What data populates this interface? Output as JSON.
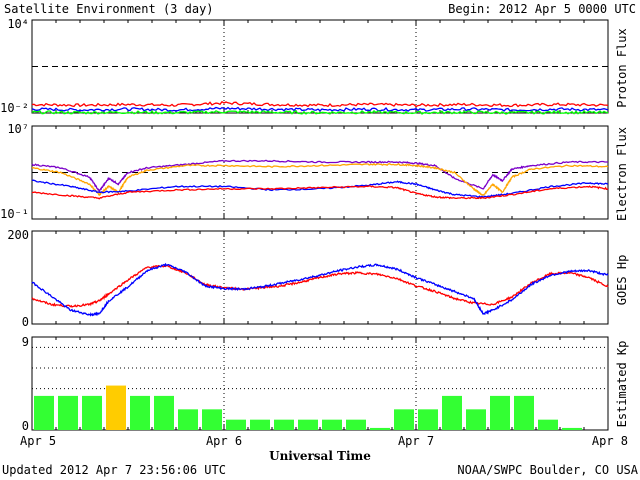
{
  "header": {
    "title": "Satellite Environment (3 day)",
    "begin": "Begin:  2012 Apr 5 0000 UTC"
  },
  "footer": {
    "updated": "Updated 2012 Apr  7 23:56:06 UTC",
    "credit": "NOAA/SWPC Boulder, CO USA"
  },
  "x_axis": {
    "title": "Universal Time",
    "ticks": [
      "Apr 5",
      "Apr 6",
      "Apr 7",
      "Apr 8"
    ]
  },
  "colors": {
    "red": "#ff0000",
    "blue": "#0000ff",
    "green": "#00ff00",
    "purple": "#7a00c8",
    "orange": "#ffa500",
    "kp_green": "#33ff33",
    "kp_yellow": "#ffcc00"
  },
  "chart_data": [
    {
      "type": "line",
      "ylabel": "Proton Flux",
      "y_ticks": [
        "10⁴",
        "10⁻²"
      ],
      "ylim_log10": [
        -2,
        4
      ],
      "threshold_log10": 1,
      "series": [
        {
          "color": "red",
          "x": [
            0,
            0.25,
            0.5,
            0.75,
            1.0,
            1.25,
            1.5,
            1.75,
            2.0,
            2.25,
            2.5,
            2.75,
            3.0
          ],
          "y": [
            -1.45,
            -1.5,
            -1.45,
            -1.5,
            -1.35,
            -1.45,
            -1.5,
            -1.45,
            -1.5,
            -1.45,
            -1.5,
            -1.45,
            -1.5
          ]
        },
        {
          "color": "blue",
          "x": [
            0,
            0.25,
            0.5,
            0.75,
            1.0,
            1.25,
            1.5,
            1.75,
            2.0,
            2.25,
            2.5,
            2.75,
            3.0
          ],
          "y": [
            -1.75,
            -1.8,
            -1.75,
            -1.8,
            -1.7,
            -1.75,
            -1.8,
            -1.75,
            -1.8,
            -1.75,
            -1.8,
            -1.75,
            -1.8
          ]
        },
        {
          "color": "green",
          "x": [
            0,
            0.25,
            0.5,
            0.75,
            1.0,
            1.25,
            1.5,
            1.75,
            2.0,
            2.25,
            2.5,
            2.75,
            3.0
          ],
          "y": [
            -1.95,
            -1.98,
            -1.95,
            -1.98,
            -1.92,
            -1.95,
            -1.98,
            -1.95,
            -1.98,
            -1.95,
            -1.98,
            -1.95,
            -1.98
          ]
        }
      ]
    },
    {
      "type": "line",
      "ylabel": "Electron Flux",
      "y_ticks": [
        "10⁷",
        "10⁻¹"
      ],
      "ylim_log10": [
        -1,
        7
      ],
      "threshold_log10": 3,
      "series": [
        {
          "color": "purple",
          "x": [
            0,
            0.15,
            0.3,
            0.35,
            0.4,
            0.45,
            0.5,
            0.6,
            0.8,
            1.0,
            1.25,
            1.5,
            1.75,
            1.9,
            2.0,
            2.1,
            2.2,
            2.35,
            2.4,
            2.45,
            2.5,
            2.6,
            2.8,
            3.0
          ],
          "y": [
            3.7,
            3.4,
            2.6,
            1.4,
            2.5,
            2.0,
            3.0,
            3.4,
            3.7,
            4.0,
            4.0,
            3.9,
            3.9,
            3.9,
            3.8,
            3.6,
            2.5,
            1.6,
            2.8,
            2.3,
            3.3,
            3.6,
            3.9,
            3.9
          ]
        },
        {
          "color": "orange",
          "x": [
            0,
            0.15,
            0.3,
            0.35,
            0.4,
            0.45,
            0.5,
            0.6,
            0.8,
            1.0,
            1.25,
            1.5,
            1.75,
            1.9,
            2.0,
            2.1,
            2.2,
            2.3,
            2.35,
            2.4,
            2.45,
            2.5,
            2.6,
            2.8,
            3.0
          ],
          "y": [
            3.4,
            3.0,
            2.0,
            1.1,
            1.8,
            1.3,
            2.6,
            3.2,
            3.6,
            3.6,
            3.5,
            3.6,
            3.7,
            3.7,
            3.6,
            3.4,
            3.0,
            1.6,
            1.0,
            2.0,
            1.3,
            2.6,
            3.3,
            3.6,
            3.5
          ]
        },
        {
          "color": "blue",
          "x": [
            0,
            0.2,
            0.35,
            0.5,
            0.75,
            1.0,
            1.25,
            1.5,
            1.75,
            1.9,
            2.0,
            2.1,
            2.2,
            2.35,
            2.5,
            2.7,
            2.9,
            3.0
          ],
          "y": [
            2.3,
            1.8,
            1.3,
            1.4,
            1.8,
            1.8,
            1.5,
            1.6,
            1.9,
            2.2,
            2.0,
            1.5,
            1.1,
            0.9,
            1.2,
            1.8,
            2.1,
            2.0
          ]
        },
        {
          "color": "red",
          "x": [
            0,
            0.2,
            0.35,
            0.5,
            0.75,
            1.0,
            1.25,
            1.5,
            1.75,
            1.9,
            2.0,
            2.1,
            2.2,
            2.35,
            2.5,
            2.7,
            2.9,
            3.0
          ],
          "y": [
            1.3,
            1.0,
            0.8,
            1.3,
            1.5,
            1.6,
            1.6,
            1.7,
            1.8,
            1.7,
            1.2,
            0.9,
            0.8,
            0.8,
            1.1,
            1.6,
            1.8,
            1.6
          ]
        }
      ]
    },
    {
      "type": "line",
      "ylabel": "GOES Hp",
      "y_ticks": [
        "200",
        "0"
      ],
      "ylim": [
        0,
        200
      ],
      "series": [
        {
          "color": "red",
          "x": [
            0,
            0.1,
            0.2,
            0.3,
            0.35,
            0.4,
            0.5,
            0.6,
            0.7,
            0.8,
            0.9,
            1.0,
            1.1,
            1.2,
            1.3,
            1.4,
            1.5,
            1.6,
            1.7,
            1.8,
            1.9,
            2.0,
            2.1,
            2.2,
            2.3,
            2.4,
            2.5,
            2.6,
            2.7,
            2.8,
            2.9,
            3.0
          ],
          "y": [
            55,
            42,
            38,
            42,
            50,
            65,
            95,
            122,
            125,
            110,
            85,
            78,
            75,
            78,
            82,
            90,
            100,
            108,
            110,
            107,
            98,
            82,
            70,
            55,
            45,
            42,
            58,
            88,
            108,
            110,
            100,
            80
          ]
        },
        {
          "color": "blue",
          "x": [
            0,
            0.1,
            0.2,
            0.3,
            0.35,
            0.4,
            0.5,
            0.6,
            0.7,
            0.8,
            0.9,
            1.0,
            1.1,
            1.2,
            1.3,
            1.4,
            1.5,
            1.6,
            1.7,
            1.8,
            1.9,
            2.0,
            2.1,
            2.2,
            2.3,
            2.35,
            2.4,
            2.5,
            2.6,
            2.7,
            2.8,
            2.9,
            3.0
          ],
          "y": [
            90,
            60,
            30,
            20,
            22,
            50,
            80,
            115,
            128,
            112,
            82,
            76,
            75,
            80,
            88,
            96,
            105,
            115,
            123,
            127,
            118,
            100,
            85,
            70,
            55,
            22,
            30,
            52,
            85,
            105,
            113,
            115,
            105
          ]
        }
      ]
    },
    {
      "type": "bar",
      "ylabel": "Estimated Kp",
      "y_ticks": [
        "9",
        "0"
      ],
      "ylim": [
        0,
        9
      ],
      "dotted_levels": [
        4,
        6,
        8
      ],
      "x_start": 0,
      "bin_width": 0.125,
      "values": [
        3.3,
        3.3,
        3.3,
        4.3,
        3.3,
        3.3,
        2.0,
        2.0,
        1.0,
        1.0,
        1.0,
        1.0,
        1.0,
        1.0,
        0.2,
        2.0,
        2.0,
        3.3,
        2.0,
        3.3,
        3.3,
        1.0,
        0.2,
        0.0
      ],
      "colors": [
        "kp_green",
        "kp_green",
        "kp_green",
        "kp_yellow",
        "kp_green",
        "kp_green",
        "kp_green",
        "kp_green",
        "kp_green",
        "kp_green",
        "kp_green",
        "kp_green",
        "kp_green",
        "kp_green",
        "kp_green",
        "kp_green",
        "kp_green",
        "kp_green",
        "kp_green",
        "kp_green",
        "kp_green",
        "kp_green",
        "kp_green",
        "kp_green"
      ]
    }
  ]
}
